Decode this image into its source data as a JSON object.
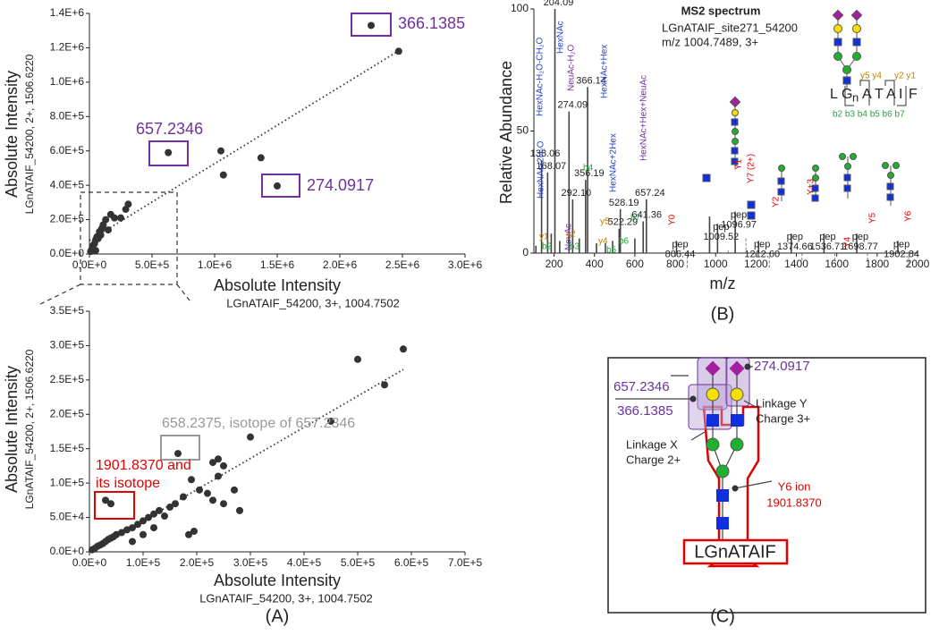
{
  "panels": [
    "(A)",
    "(B)",
    "(C)"
  ],
  "chart_data": [
    {
      "type": "scatter",
      "x_label": "Absolute Intensity",
      "x_sublabel": "LGnATAIF_54200, 3+, 1004.7502",
      "y_label": "Absolute Intensity",
      "y_sublabel": "LGnATAIF_54200, 2+, 1506.6220",
      "color": "#333333",
      "trendline": true,
      "x": [
        10000,
        20000,
        30000,
        40000,
        50000,
        60000,
        70000,
        80000,
        90000,
        100000,
        110000,
        130000,
        150000,
        170000,
        50000,
        200000,
        250000,
        290000,
        310000,
        630000,
        1050000,
        1070000,
        1370000,
        1500000,
        2250000,
        2470000
      ],
      "values": [
        15000,
        30000,
        50000,
        60000,
        80000,
        100000,
        90000,
        130000,
        110000,
        150000,
        170000,
        200000,
        140000,
        230000,
        20000,
        210000,
        210000,
        260000,
        290000,
        590000,
        600000,
        460000,
        560000,
        396000,
        1330000,
        1180000
      ],
      "xlim": [
        0,
        3000000
      ],
      "xticks": [
        {
          "value": 0,
          "label": "0.0E+0"
        },
        {
          "value": 500000,
          "label": "5.0E+5"
        },
        {
          "value": 1000000,
          "label": "1.0E+6"
        },
        {
          "value": 1500000,
          "label": "1.5E+6"
        },
        {
          "value": 2000000,
          "label": "2.0E+6"
        },
        {
          "value": 2500000,
          "label": "2.5E+6"
        },
        {
          "value": 3000000,
          "label": "3.0E+6"
        }
      ],
      "ylim": [
        0,
        1400000
      ],
      "yticks": [
        {
          "value": 0,
          "label": "0.0E+0"
        },
        {
          "value": 200000,
          "label": "2.0E+5"
        },
        {
          "value": 400000,
          "label": "4.0E+5"
        },
        {
          "value": 600000,
          "label": "6.0E+5"
        },
        {
          "value": 800000,
          "label": "8.0E+5"
        },
        {
          "value": 1000000,
          "label": "1.0E+6"
        },
        {
          "value": 1200000,
          "label": "1.2E+6"
        },
        {
          "value": 1400000,
          "label": "1.4E+6"
        }
      ],
      "annotations": [
        {
          "lines": [
            "366.1385"
          ],
          "color": "#7030a0"
        },
        {
          "lines": [
            "657.2346"
          ],
          "color": "#7030a0"
        },
        {
          "lines": [
            "274.0917"
          ],
          "color": "#7030a0"
        }
      ]
    },
    {
      "type": "scatter",
      "x_label": "Absolute Intensity",
      "x_sublabel": "LGnATAIF_54200, 3+, 1004.7502",
      "y_label": "Absolute Intensity",
      "y_sublabel": "LGnATAIF_54200, 2+, 1506.6220",
      "color": "#333333",
      "trendline": true,
      "x": [
        5000,
        10000,
        15000,
        20000,
        25000,
        30000,
        35000,
        40000,
        45000,
        50000,
        60000,
        70000,
        80000,
        90000,
        100000,
        110000,
        120000,
        130000,
        140000,
        150000,
        160000,
        175000,
        120000,
        100000,
        80000,
        30000,
        40000,
        165000,
        190000,
        205000,
        230000,
        240000,
        250000,
        240000,
        220000,
        230000,
        270000,
        280000,
        250000,
        195000,
        185000,
        300000,
        450000,
        550000,
        500000,
        585000
      ],
      "values": [
        3000,
        5000,
        8000,
        10000,
        12000,
        15000,
        18000,
        20000,
        22000,
        25000,
        28000,
        32000,
        35000,
        40000,
        45000,
        50000,
        55000,
        60000,
        52000,
        65000,
        70000,
        80000,
        35000,
        25000,
        15000,
        75000,
        70000,
        143000,
        105000,
        90000,
        130000,
        135000,
        125000,
        110000,
        85000,
        75000,
        90000,
        60000,
        70000,
        30000,
        25000,
        167000,
        190000,
        243000,
        280000,
        295000
      ],
      "xlim": [
        0,
        700000
      ],
      "xticks": [
        {
          "value": 0,
          "label": "0.0E+0"
        },
        {
          "value": 100000,
          "label": "1.0E+5"
        },
        {
          "value": 200000,
          "label": "2.0E+5"
        },
        {
          "value": 300000,
          "label": "3.0E+5"
        },
        {
          "value": 400000,
          "label": "4.0E+5"
        },
        {
          "value": 500000,
          "label": "5.0E+5"
        },
        {
          "value": 600000,
          "label": "6.0E+5"
        },
        {
          "value": 700000,
          "label": "7.0E+5"
        }
      ],
      "ylim": [
        0,
        350000
      ],
      "yticks": [
        {
          "value": 0,
          "label": "0.0E+0"
        },
        {
          "value": 50000,
          "label": "5.0E+4"
        },
        {
          "value": 100000,
          "label": "1.0E+5"
        },
        {
          "value": 150000,
          "label": "1.5E+5"
        },
        {
          "value": 200000,
          "label": "2.0E+5"
        },
        {
          "value": 250000,
          "label": "2.5E+5"
        },
        {
          "value": 300000,
          "label": "3.0E+5"
        },
        {
          "value": 350000,
          "label": "3.5E+5"
        }
      ],
      "annotations": [
        {
          "lines": [
            "658.2375, isotope of 657.2346"
          ],
          "color": "#999999"
        },
        {
          "lines": [
            "1901.8370 and",
            "its isotope"
          ],
          "color": "#e00000"
        }
      ]
    },
    {
      "type": "bar",
      "title": "MS2 spectrum",
      "subtitle": [
        "LGnATAIF_site271_54200",
        "m/z 1004.7489, 3+"
      ],
      "x_label": "m/z",
      "y_label": "Relative Abundance",
      "color": "#444444",
      "x": [
        110,
        138.06,
        168.07,
        186,
        204.09,
        228,
        274.09,
        292.1,
        325,
        356.19,
        366.14,
        410,
        454,
        490,
        522.29,
        528.19,
        600,
        641.36,
        657.24,
        806.44,
        970,
        1009.52,
        1096.97,
        1212.6,
        1374.66,
        1536.71,
        1698.77,
        1902.84
      ],
      "values": [
        3,
        38,
        33,
        8,
        100,
        5,
        58,
        22,
        6,
        30,
        68,
        4,
        4,
        5,
        10,
        18,
        6,
        13,
        22,
        5,
        15,
        12,
        17,
        5,
        8,
        8,
        8,
        5
      ],
      "peak_labels": [
        null,
        "138.06",
        "168.07",
        null,
        "204.09",
        null,
        "274.09",
        "292.10",
        null,
        "356.19",
        "366.14",
        null,
        null,
        null,
        "522.29",
        "528.19",
        null,
        "641.36",
        "657.24",
        {
          "prefix": "pep",
          "label": "806.44"
        },
        null,
        {
          "prefix": "pep",
          "label": "1009.52"
        },
        {
          "prefix": "pep",
          "label": "1096.97"
        },
        {
          "prefix": "pep",
          "label": "1212.60"
        },
        {
          "prefix": "pep",
          "label": "1374.66"
        },
        {
          "prefix": "pep",
          "label": "1536.71"
        },
        {
          "prefix": "pep",
          "label": "1698.77"
        },
        {
          "prefix": "pep",
          "label": "1902.84"
        }
      ],
      "xlim": [
        100,
        2000
      ],
      "xticks": [
        200,
        400,
        600,
        800,
        1000,
        1200,
        1400,
        1600,
        1800,
        2000
      ],
      "ylim": [
        0,
        100
      ],
      "yticks": [
        0,
        50,
        100
      ],
      "fragment_labels": [
        {
          "text": "HexNAc-H₂O-CH₂O",
          "color": "#1f3fd0"
        },
        {
          "text": "HexNAc",
          "color": "#1f3fd0"
        },
        {
          "text": "NeuAc-H₂O",
          "color": "#7030a0"
        },
        {
          "text": "HexNAc+Hex",
          "color": "#1f3fd0"
        },
        {
          "text": "HexNAc-2H₂O",
          "color": "#1f3fd0"
        },
        {
          "text": "NeuAc",
          "color": "#7030a0"
        },
        {
          "text": "HexNAc+2Hex",
          "color": "#1f3fd0"
        },
        {
          "text": "HexNAc+Hex+NeuAc",
          "color": "#7030a0"
        }
      ],
      "ion_labels": [
        {
          "text": "b4",
          "color": "#22a33a"
        },
        {
          "text": "y1",
          "color": "#c08000"
        },
        {
          "text": "b2",
          "color": "#22a33a"
        },
        {
          "text": "y2",
          "color": "#c08000"
        },
        {
          "text": "b3",
          "color": "#22a33a"
        },
        {
          "text": "y5",
          "color": "#c08000"
        },
        {
          "text": "y4",
          "color": "#c08000"
        },
        {
          "text": "b6",
          "color": "#22a33a"
        },
        {
          "text": "b5",
          "color": "#22a33a"
        },
        {
          "text": "b7",
          "color": "#22a33a"
        },
        {
          "text": "Y0",
          "color": "#e00000"
        },
        {
          "text": "Y1",
          "color": "#e00000"
        },
        {
          "text": "Y7 (2+)",
          "color": "#e00000"
        },
        {
          "text": "Y2",
          "color": "#e00000"
        },
        {
          "text": "Y+3",
          "color": "#e00000"
        },
        {
          "text": "Y4",
          "color": "#e00000"
        },
        {
          "text": "Y5",
          "color": "#e00000"
        },
        {
          "text": "Y6",
          "color": "#e00000"
        }
      ],
      "sequence": [
        "L",
        "G",
        "n",
        "A",
        "T",
        "A",
        "I",
        "F"
      ],
      "y_ions": [
        "y5 y4",
        "y2 y1"
      ],
      "b_ions": "b2 b3 b4 b5 b6 b7"
    }
  ],
  "diagram": {
    "mass_a": "657.2346",
    "mass_b": "366.1385",
    "mass_c": "274.0917",
    "linkage_y": [
      "Linkage Y",
      "Charge 3+"
    ],
    "linkage_x": [
      "Linkage X",
      "Charge 2+"
    ],
    "y6": [
      "Y6 ion",
      "1901.8370"
    ],
    "peptide": "LGnATAIF"
  }
}
